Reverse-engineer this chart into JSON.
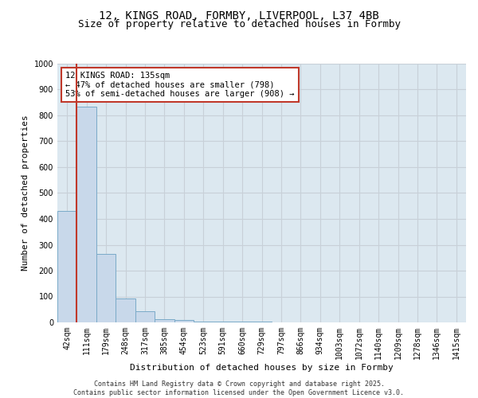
{
  "title_line1": "12, KINGS ROAD, FORMBY, LIVERPOOL, L37 4BB",
  "title_line2": "Size of property relative to detached houses in Formby",
  "xlabel": "Distribution of detached houses by size in Formby",
  "ylabel": "Number of detached properties",
  "categories": [
    "42sqm",
    "111sqm",
    "179sqm",
    "248sqm",
    "317sqm",
    "385sqm",
    "454sqm",
    "523sqm",
    "591sqm",
    "660sqm",
    "729sqm",
    "797sqm",
    "866sqm",
    "934sqm",
    "1003sqm",
    "1072sqm",
    "1140sqm",
    "1209sqm",
    "1278sqm",
    "1346sqm",
    "1415sqm"
  ],
  "values": [
    430,
    835,
    265,
    93,
    43,
    13,
    8,
    4,
    3,
    2,
    2,
    1,
    1,
    1,
    0,
    0,
    0,
    0,
    0,
    0,
    0
  ],
  "bar_color": "#c8d8ea",
  "bar_edge_color": "#7aaac8",
  "vline_color": "#c0392b",
  "annotation_text": "12 KINGS ROAD: 135sqm\n← 47% of detached houses are smaller (798)\n53% of semi-detached houses are larger (908) →",
  "annotation_box_color": "white",
  "annotation_box_edge_color": "#c0392b",
  "ylim": [
    0,
    1000
  ],
  "yticks": [
    0,
    100,
    200,
    300,
    400,
    500,
    600,
    700,
    800,
    900,
    1000
  ],
  "grid_color": "#c8d0d8",
  "bg_color": "#dce8f0",
  "footer_text": "Contains HM Land Registry data © Crown copyright and database right 2025.\nContains public sector information licensed under the Open Government Licence v3.0.",
  "title_fontsize": 10,
  "subtitle_fontsize": 9,
  "tick_fontsize": 7,
  "label_fontsize": 8,
  "annot_fontsize": 7.5,
  "vline_x_index": 1
}
